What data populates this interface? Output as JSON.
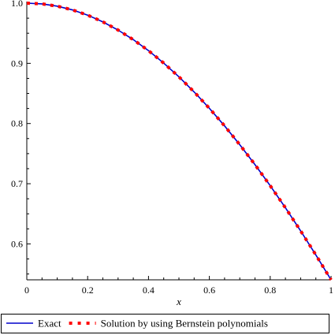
{
  "chart_data": {
    "type": "line",
    "xlabel": "x",
    "ylabel": "",
    "xlim": [
      0,
      1
    ],
    "ylim": [
      0.5403,
      1.0
    ],
    "x_ticks": [
      0,
      0.2,
      0.4,
      0.6,
      0.8,
      1
    ],
    "x_tick_labels": [
      "0",
      "0.2",
      "0.4",
      "0.6",
      "0.8",
      "1"
    ],
    "y_ticks": [
      0.6,
      0.7,
      0.8,
      0.9,
      1.0
    ],
    "y_tick_labels": [
      "0.6",
      "0.7",
      "0.8",
      "0.9",
      "1.0"
    ],
    "grid": false,
    "legend_position": "bottom",
    "series": [
      {
        "name": "Exact",
        "style": "solid",
        "color": "#0000cc",
        "x": [
          0,
          0.05,
          0.1,
          0.15,
          0.2,
          0.25,
          0.3,
          0.35,
          0.4,
          0.45,
          0.5,
          0.55,
          0.6,
          0.65,
          0.7,
          0.75,
          0.8,
          0.85,
          0.9,
          0.95,
          1.0
        ],
        "values": [
          1.0,
          0.9988,
          0.995,
          0.9888,
          0.9801,
          0.9689,
          0.9553,
          0.9394,
          0.9211,
          0.9004,
          0.8776,
          0.8525,
          0.8253,
          0.7961,
          0.7648,
          0.7317,
          0.6967,
          0.66,
          0.6216,
          0.5817,
          0.5403
        ]
      },
      {
        "name": "Solution by using Bernstein polynomials",
        "style": "dotted",
        "color": "#ff0000",
        "x": [
          0,
          0.05,
          0.1,
          0.15,
          0.2,
          0.25,
          0.3,
          0.35,
          0.4,
          0.45,
          0.5,
          0.55,
          0.6,
          0.65,
          0.7,
          0.75,
          0.8,
          0.85,
          0.9,
          0.95,
          1.0
        ],
        "values": [
          1.0,
          0.9988,
          0.995,
          0.9888,
          0.9801,
          0.9689,
          0.9553,
          0.9394,
          0.9211,
          0.9004,
          0.8776,
          0.8525,
          0.8253,
          0.7961,
          0.7648,
          0.7317,
          0.6967,
          0.66,
          0.6216,
          0.5817,
          0.5403
        ]
      }
    ]
  }
}
